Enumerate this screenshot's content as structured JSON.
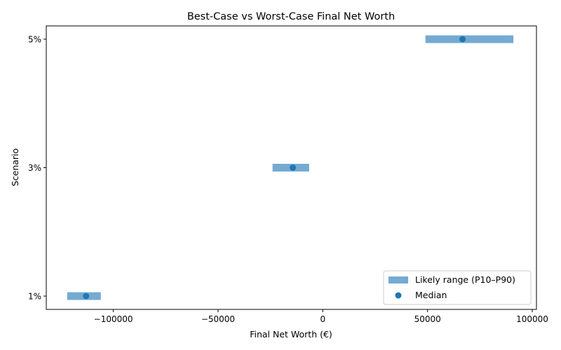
{
  "chart_data": {
    "type": "range-bar-with-points",
    "title": "Best-Case vs Worst-Case Final Net Worth",
    "xlabel": "Final Net Worth (€)",
    "ylabel": "Scenario",
    "xlim": [
      -132000,
      102000
    ],
    "x_ticks": [
      -100000,
      -50000,
      0,
      50000,
      100000
    ],
    "x_tick_labels": [
      "−100000",
      "−50000",
      "0",
      "50000",
      "100000"
    ],
    "categories": [
      "1%",
      "3%",
      "5%"
    ],
    "series": [
      {
        "name": "Likely range (P10–P90)",
        "kind": "range",
        "color": "#75aad1",
        "low": [
          -122000,
          -24000,
          49000
        ],
        "high": [
          -106000,
          -6500,
          91000
        ]
      },
      {
        "name": "Median",
        "kind": "scatter",
        "color": "#1f77b4",
        "values": [
          -113000,
          -14300,
          66700
        ]
      }
    ],
    "grid": false,
    "legend_position": "lower right"
  },
  "legend": {
    "range_label": "Likely range (P10–P90)",
    "median_label": "Median"
  }
}
